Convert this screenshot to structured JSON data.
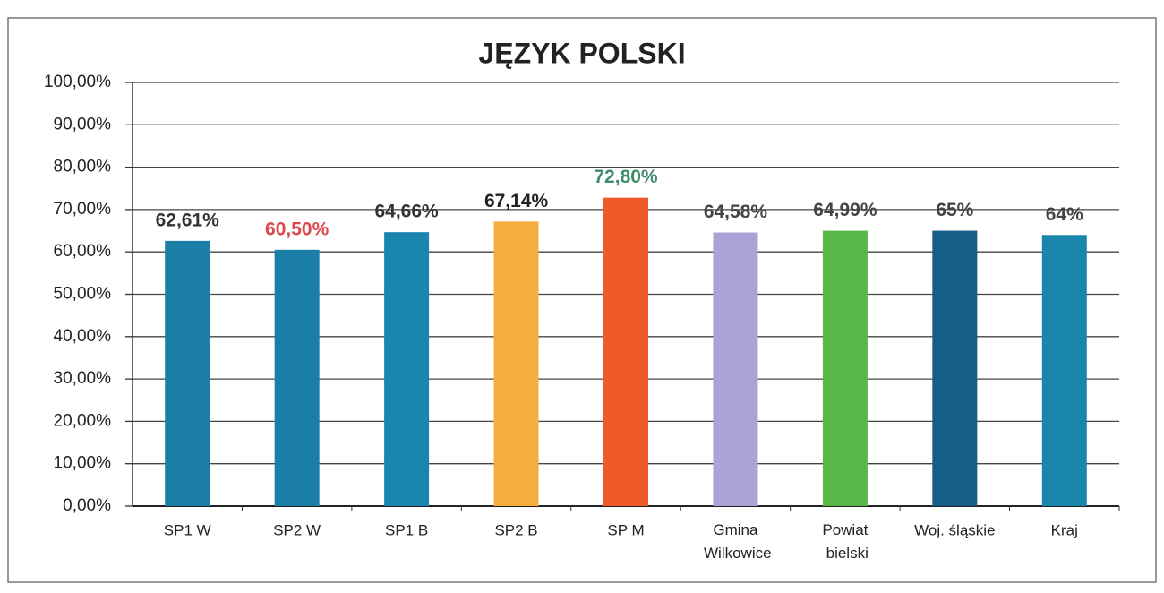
{
  "chart_data": {
    "type": "bar",
    "title": "JĘZYK POLSKI",
    "categories": [
      "SP1 W",
      "SP2 W",
      "SP1 B",
      "SP2 B",
      "SP M",
      "Gmina Wilkowice",
      "Powiat bielski",
      "Woj. śląskie",
      "Kraj"
    ],
    "values": [
      62.61,
      60.5,
      64.66,
      67.14,
      72.8,
      64.58,
      64.99,
      65,
      64
    ],
    "value_labels": [
      "62,61%",
      "60,50%",
      "64,66%",
      "67,14%",
      "72,80%",
      "64,58%",
      "64,99%",
      "65%",
      "64%"
    ],
    "colors": [
      "#1a7ea6",
      "#1a7ea6",
      "#1a86b0",
      "#f5ad3c",
      "#ee5a2a",
      "#a9a3d6",
      "#57b847",
      "#155f87",
      "#1a86ac"
    ],
    "value_label_colors": [
      "#333333",
      "#e0474c",
      "#333333",
      "#222222",
      "#3f8a6a",
      "#444444",
      "#444444",
      "#444444",
      "#444444"
    ],
    "ylim": [
      0,
      100
    ],
    "yticks": [
      {
        "value": 0,
        "label": "0,00%"
      },
      {
        "value": 10,
        "label": "10,00%"
      },
      {
        "value": 20,
        "label": "20,00%"
      },
      {
        "value": 30,
        "label": "30,00%"
      },
      {
        "value": 40,
        "label": "40,00%"
      },
      {
        "value": 50,
        "label": "50,00%"
      },
      {
        "value": 60,
        "label": "60,00%"
      },
      {
        "value": 70,
        "label": "70,00%"
      },
      {
        "value": 80,
        "label": "80,00%"
      },
      {
        "value": 90,
        "label": "90,00%"
      },
      {
        "value": 100,
        "label": "100,00%"
      }
    ],
    "grid": true
  }
}
